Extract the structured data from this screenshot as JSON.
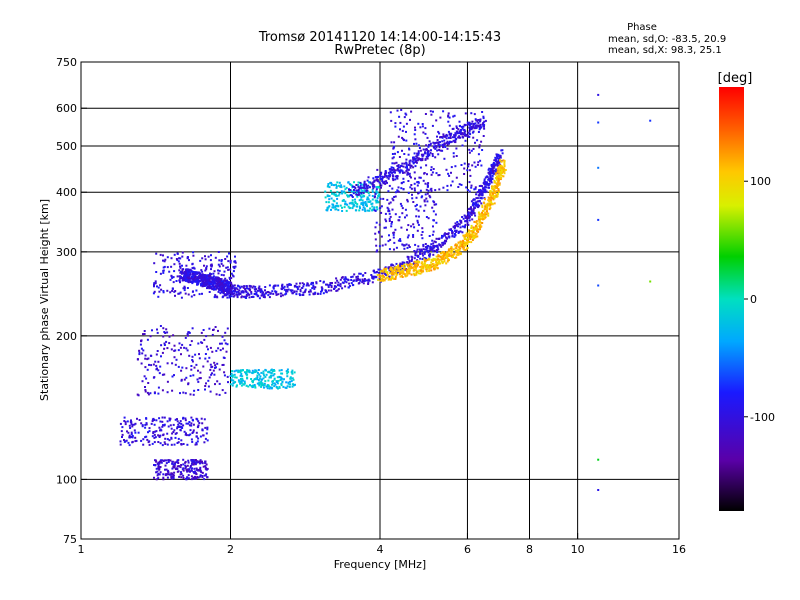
{
  "chart_data": {
    "type": "scatter",
    "title": "Tromsø 20141120 14:14:00-14:15:43",
    "subtitle": "RwPretec (8p)",
    "xlabel": "Frequency [MHz]",
    "ylabel": "Stationary phase Virtual Height [km]",
    "x_scale": "log",
    "y_scale": "log",
    "xlim": [
      1,
      16
    ],
    "ylim": [
      75,
      750
    ],
    "x_ticks": [
      1,
      2,
      4,
      6,
      8,
      10,
      16
    ],
    "y_ticks": [
      75,
      100,
      200,
      300,
      400,
      500,
      600,
      750
    ],
    "x_gridlines": [
      2,
      4,
      6,
      8,
      10
    ],
    "y_gridlines": [
      100,
      200,
      300,
      400,
      500,
      600
    ],
    "grid": true,
    "stats": {
      "heading": "Phase",
      "line1": "mean, sd,O: -83.5, 20.9",
      "line2": "mean, sd,X:  98.3, 25.1"
    },
    "colorbar": {
      "label": "[deg]",
      "range": [
        -180,
        180
      ],
      "ticks": [
        100,
        0,
        -100
      ]
    },
    "traces": [
      {
        "name": "",
        "x": [
          1.95,
          2.3,
          3.0,
          4.0,
          5.0,
          6.0,
          6.6,
          7.0
        ],
        "y": [
          248,
          247,
          252,
          268,
          300,
          350,
          420,
          480
        ]
      },
      {
        "name": "",
        "x": [
          4.0,
          4.6,
          5.2,
          5.8,
          6.3,
          6.8,
          7.1
        ],
        "y": [
          268,
          275,
          285,
          305,
          340,
          400,
          460
        ]
      },
      {
        "name": "",
        "x": [
          1.6,
          1.7,
          1.8,
          1.9,
          2.0
        ],
        "y": [
          270,
          265,
          260,
          256,
          252
        ]
      },
      {
        "name": "",
        "x": [
          3.5,
          4.5,
          5.5,
          6.5
        ],
        "y": [
          400,
          450,
          520,
          560
        ]
      }
    ],
    "clusters": [
      {
        "x": [
          1.4,
          2.05
        ],
        "y": [
          240,
          300
        ],
        "phase": -100
      },
      {
        "x": [
          1.3,
          2.0
        ],
        "y": [
          150,
          210
        ],
        "phase": -105
      },
      {
        "x": [
          1.2,
          1.8
        ],
        "y": [
          118,
          135
        ],
        "phase": -100
      },
      {
        "x": [
          1.4,
          1.8
        ],
        "y": [
          100,
          110
        ],
        "phase": -110
      },
      {
        "x": [
          2.0,
          2.7
        ],
        "y": [
          155,
          170
        ],
        "phase": -20
      },
      {
        "x": [
          3.1,
          4.0
        ],
        "y": [
          365,
          420
        ],
        "phase": -20
      },
      {
        "x": [
          3.9,
          5.2
        ],
        "y": [
          300,
          450
        ],
        "phase": -100
      },
      {
        "x": [
          4.2,
          6.5
        ],
        "y": [
          400,
          600
        ],
        "phase": -100
      }
    ]
  }
}
